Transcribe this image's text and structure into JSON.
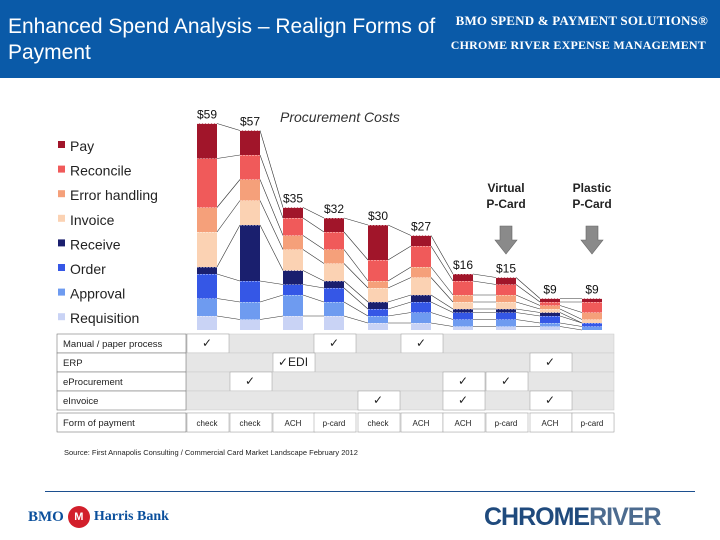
{
  "header": {
    "title": "Enhanced Spend Analysis – Realign Forms of Payment",
    "brand_line1": "BMO SPEND & PAYMENT SOLUTIONS®",
    "brand_line2": "CHROME RIVER EXPENSE MANAGEMENT"
  },
  "chart_data": {
    "type": "bar",
    "stacked": true,
    "title": "Procurement Costs",
    "totals_labels": [
      "$59",
      "$57",
      "$35",
      "$32",
      "$30",
      "$27",
      "$16",
      "$15",
      "$9",
      "$9"
    ],
    "totals": [
      59,
      57,
      35,
      32,
      30,
      27,
      16,
      15,
      9,
      9
    ],
    "legend": [
      {
        "name": "Pay",
        "color": "#a1152a"
      },
      {
        "name": "Reconcile",
        "color": "#f05a5a"
      },
      {
        "name": "Error handling",
        "color": "#f5a07a"
      },
      {
        "name": "Invoice",
        "color": "#fbd2b3"
      },
      {
        "name": "Receive",
        "color": "#1a1f6e"
      },
      {
        "name": "Order",
        "color": "#3557e6"
      },
      {
        "name": "Approval",
        "color": "#6e9bf0"
      },
      {
        "name": "Requisition",
        "color": "#c9d3f5"
      }
    ],
    "series": [
      {
        "name": "Pay",
        "values": [
          10,
          7,
          3,
          4,
          10,
          3,
          2,
          2,
          1,
          1
        ]
      },
      {
        "name": "Reconcile",
        "values": [
          14,
          7,
          5,
          5,
          6,
          6,
          4,
          3,
          1,
          3
        ]
      },
      {
        "name": "Error handling",
        "values": [
          7,
          6,
          4,
          4,
          2,
          3,
          2,
          2,
          1,
          2
        ]
      },
      {
        "name": "Invoice",
        "values": [
          10,
          7,
          6,
          5,
          4,
          5,
          2,
          2,
          1,
          1
        ]
      },
      {
        "name": "Receive",
        "values": [
          2,
          16,
          4,
          2,
          2,
          2,
          1,
          1,
          1,
          0
        ]
      },
      {
        "name": "Order",
        "values": [
          7,
          6,
          3,
          4,
          2,
          3,
          2,
          2,
          2,
          1
        ]
      },
      {
        "name": "Approval",
        "values": [
          5,
          5,
          6,
          4,
          2,
          3,
          2,
          2,
          1,
          1
        ]
      },
      {
        "name": "Requisition",
        "values": [
          4,
          3,
          4,
          4,
          2,
          2,
          1,
          1,
          1,
          0
        ]
      }
    ],
    "callouts": [
      {
        "text": "Virtual\nP-Card",
        "bar_index": 7
      },
      {
        "text": "Plastic\nP-Card",
        "bar_index": 9
      }
    ],
    "table": {
      "rows": [
        {
          "label": "Manual / paper process",
          "checks": [
            "✓",
            "",
            "",
            "✓",
            "",
            "✓",
            "",
            "",
            "",
            ""
          ]
        },
        {
          "label": "ERP",
          "checks": [
            "",
            "",
            "✓EDI",
            "",
            "",
            "",
            "",
            "",
            "✓",
            ""
          ]
        },
        {
          "label": "eProcurement",
          "checks": [
            "",
            "✓",
            "",
            "",
            "",
            "",
            "✓",
            "✓",
            "",
            ""
          ]
        },
        {
          "label": "eInvoice",
          "checks": [
            "",
            "",
            "",
            "",
            "✓",
            "",
            "✓",
            "",
            "✓",
            ""
          ]
        },
        {
          "label": "Form of payment",
          "checks": [
            "check",
            "check",
            "ACH",
            "p-card",
            "check",
            "ACH",
            "ACH",
            "p-card",
            "ACH",
            "p-card"
          ]
        }
      ]
    }
  },
  "footer": {
    "source": "Source: First Annapolis Consulting / Commercial Card Market Landscape February 2012",
    "bmo_text": "BMO",
    "bmo_roundel": "M",
    "harris_text": "Harris Bank",
    "chrome_river_a": "CHROME",
    "chrome_river_b": "RIVER"
  }
}
